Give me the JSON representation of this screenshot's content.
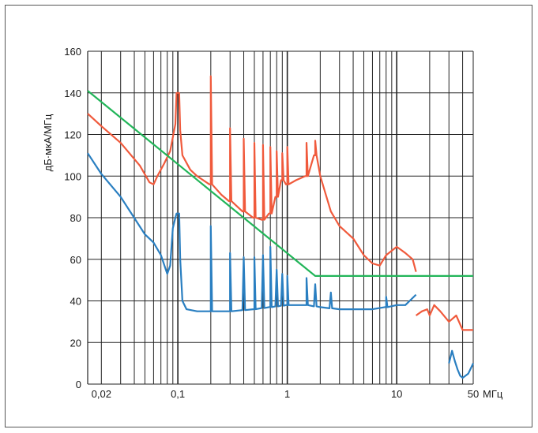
{
  "chart_data": {
    "type": "line",
    "title": "",
    "xlabel": "",
    "ylabel": "дБ·мкА/МГц",
    "x_unit": "МГц",
    "x_scale": "log",
    "xlim": [
      0.015,
      50
    ],
    "ylim": [
      0,
      160
    ],
    "grid": true,
    "legend": "none",
    "x_tick_labels": [
      {
        "value": 0.02,
        "label": "0,02"
      },
      {
        "value": 0.1,
        "label": "0,1"
      },
      {
        "value": 1,
        "label": "1"
      },
      {
        "value": 10,
        "label": "10"
      },
      {
        "value": 50,
        "label": "50"
      }
    ],
    "y_ticks": [
      0,
      20,
      40,
      60,
      80,
      100,
      120,
      140,
      160
    ],
    "series": [
      {
        "color": "#f05a3c",
        "x": [
          0.015,
          0.02,
          0.03,
          0.045,
          0.055,
          0.06,
          0.065,
          0.075,
          0.085,
          0.095,
          0.1,
          0.105,
          0.11,
          0.13,
          0.15,
          0.2,
          0.25,
          0.3,
          0.4,
          0.5,
          0.6,
          0.7,
          0.8,
          0.9,
          1.0,
          1.2,
          1.5,
          1.8,
          2.0,
          2.5,
          3.0,
          4.0,
          5.0,
          6.0,
          7.0,
          8.0,
          10.0,
          12.0,
          14.0,
          15.0
        ],
        "y": [
          130,
          124,
          116,
          105,
          97,
          96,
          100,
          106,
          112,
          125,
          140,
          122,
          110,
          103,
          100,
          96,
          91,
          88,
          83,
          80,
          79,
          82,
          90,
          98,
          96,
          98,
          100,
          110,
          100,
          83,
          76,
          70,
          62,
          58,
          57,
          62,
          66,
          63,
          60,
          54
        ],
        "peaks": [
          {
            "x": 0.1,
            "y": 140
          },
          {
            "x": 0.2,
            "y": 148
          },
          {
            "x": 0.3,
            "y": 123
          },
          {
            "x": 0.4,
            "y": 118
          },
          {
            "x": 0.5,
            "y": 116
          },
          {
            "x": 0.6,
            "y": 115
          },
          {
            "x": 0.7,
            "y": 114
          },
          {
            "x": 0.8,
            "y": 112
          },
          {
            "x": 0.9,
            "y": 111
          },
          {
            "x": 1.0,
            "y": 114
          },
          {
            "x": 1.5,
            "y": 116
          },
          {
            "x": 1.8,
            "y": 117
          }
        ]
      },
      {
        "color": "#f05a3c",
        "x": [
          15.0,
          17.0,
          19.0,
          20.0,
          22.0,
          25.0,
          30.0,
          35.0,
          40.0,
          50.0
        ],
        "y": [
          33,
          35,
          36,
          33,
          38,
          35,
          30,
          33,
          26,
          26
        ]
      },
      {
        "color": "#2a7fc1",
        "x": [
          0.015,
          0.02,
          0.03,
          0.05,
          0.06,
          0.07,
          0.08,
          0.085,
          0.09,
          0.095,
          0.1,
          0.105,
          0.11,
          0.12,
          0.15,
          0.2,
          0.3,
          0.5,
          0.7,
          1.0,
          1.5,
          2.0,
          3.0,
          4.0,
          5.0,
          6.0,
          8.0,
          10.0,
          12.0,
          15.0
        ],
        "y": [
          111,
          101,
          90,
          72,
          68,
          62,
          53,
          57,
          75,
          80,
          82,
          60,
          40,
          36,
          35,
          35,
          35,
          36,
          37,
          38,
          38,
          37,
          36,
          36,
          36,
          36,
          37,
          38,
          38,
          43
        ],
        "peaks": [
          {
            "x": 0.1,
            "y": 82
          },
          {
            "x": 0.2,
            "y": 76
          },
          {
            "x": 0.3,
            "y": 63
          },
          {
            "x": 0.4,
            "y": 61
          },
          {
            "x": 0.5,
            "y": 61
          },
          {
            "x": 0.6,
            "y": 62
          },
          {
            "x": 0.7,
            "y": 66
          },
          {
            "x": 0.8,
            "y": 55
          },
          {
            "x": 0.9,
            "y": 53
          },
          {
            "x": 1.0,
            "y": 52
          },
          {
            "x": 1.5,
            "y": 51
          },
          {
            "x": 1.8,
            "y": 48
          },
          {
            "x": 2.5,
            "y": 44
          },
          {
            "x": 8.0,
            "y": 42
          }
        ]
      },
      {
        "color": "#2a7fc1",
        "x": [
          30.0,
          32.0,
          34.0,
          36.0,
          38.0,
          40.0,
          45.0,
          50.0
        ],
        "y": [
          10,
          16,
          11,
          7,
          4,
          3,
          5,
          10
        ]
      },
      {
        "color": "#22b559",
        "x": [
          0.015,
          1.8,
          50.0
        ],
        "y": [
          141,
          52,
          52
        ]
      }
    ]
  }
}
